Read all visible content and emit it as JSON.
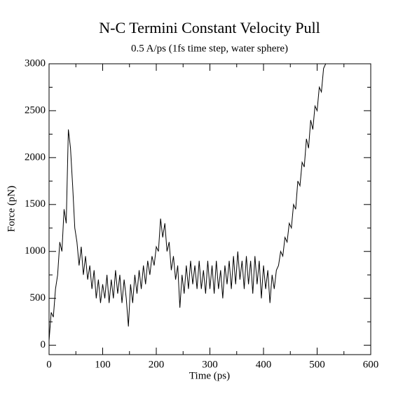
{
  "chart_data": {
    "type": "line",
    "title": "N-C Termini Constant Velocity Pull",
    "subtitle": "0.5 A/ps (1fs time step, water sphere)",
    "xlabel": "Time (ps)",
    "ylabel": "Force (pN)",
    "xlim": [
      0,
      600
    ],
    "ylim": [
      -100,
      3000
    ],
    "xticks": [
      0,
      100,
      200,
      300,
      400,
      500,
      600
    ],
    "yticks": [
      0,
      500,
      1000,
      1500,
      2000,
      2500,
      3000
    ],
    "xminorticks": [
      50,
      150,
      250,
      350,
      450,
      550
    ],
    "yminorticks": [
      250,
      750,
      1250,
      1750,
      2250,
      2750
    ],
    "x": [
      0,
      4,
      8,
      12,
      16,
      20,
      24,
      28,
      32,
      36,
      40,
      44,
      48,
      52,
      56,
      60,
      64,
      68,
      72,
      76,
      80,
      84,
      88,
      92,
      96,
      100,
      104,
      108,
      112,
      116,
      120,
      124,
      128,
      132,
      136,
      140,
      144,
      148,
      152,
      156,
      160,
      164,
      168,
      172,
      176,
      180,
      184,
      188,
      192,
      196,
      200,
      204,
      208,
      212,
      216,
      220,
      224,
      228,
      232,
      236,
      240,
      244,
      248,
      252,
      256,
      260,
      264,
      268,
      272,
      276,
      280,
      284,
      288,
      292,
      296,
      300,
      304,
      308,
      312,
      316,
      320,
      324,
      328,
      332,
      336,
      340,
      344,
      348,
      352,
      356,
      360,
      364,
      368,
      372,
      376,
      380,
      384,
      388,
      392,
      396,
      400,
      404,
      408,
      412,
      416,
      420,
      424,
      428,
      432,
      436,
      440,
      444,
      448,
      452,
      456,
      460,
      464,
      468,
      472,
      476,
      480,
      484,
      488,
      492,
      496,
      500,
      504,
      508,
      512,
      516
    ],
    "series": [
      {
        "name": "Force",
        "color": "#000000",
        "values": [
          50,
          350,
          300,
          600,
          750,
          1100,
          1000,
          1450,
          1300,
          2300,
          2100,
          1700,
          1250,
          1100,
          850,
          1050,
          750,
          950,
          700,
          850,
          600,
          800,
          500,
          700,
          450,
          650,
          500,
          750,
          450,
          700,
          500,
          800,
          550,
          750,
          450,
          700,
          500,
          200,
          650,
          450,
          750,
          550,
          800,
          600,
          850,
          650,
          900,
          750,
          950,
          850,
          1050,
          1000,
          1350,
          1150,
          1300,
          1000,
          1100,
          800,
          950,
          700,
          850,
          400,
          750,
          550,
          850,
          600,
          900,
          650,
          850,
          600,
          900,
          600,
          800,
          550,
          900,
          600,
          850,
          550,
          900,
          600,
          800,
          500,
          850,
          650,
          900,
          600,
          950,
          650,
          1000,
          700,
          900,
          600,
          950,
          650,
          900,
          550,
          950,
          650,
          900,
          500,
          850,
          600,
          800,
          450,
          750,
          600,
          800,
          850,
          1000,
          950,
          1150,
          1100,
          1300,
          1250,
          1500,
          1450,
          1750,
          1700,
          1950,
          1900,
          2200,
          2100,
          2400,
          2300,
          2550,
          2500,
          2750,
          2700,
          2950,
          3000
        ]
      }
    ]
  }
}
